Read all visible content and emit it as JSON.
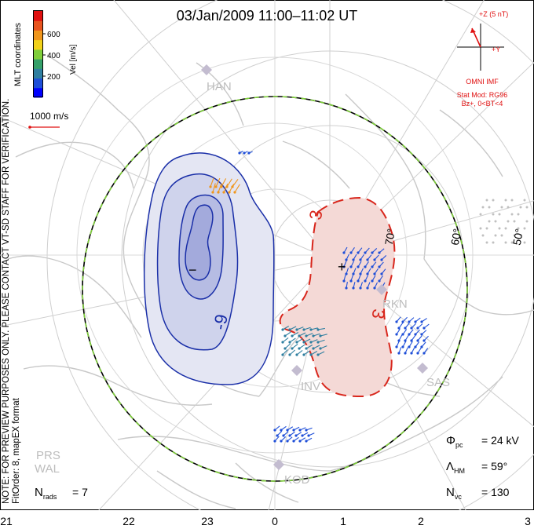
{
  "title": "03/Jan/2009 11:00–11:02 UT",
  "colorbar": {
    "label": "Vel [m/s]",
    "ticks": [
      "600",
      "400",
      "200"
    ],
    "colors": [
      "#0000ff",
      "#1f4fd8",
      "#2f7fa0",
      "#35a06a",
      "#7fcf3a",
      "#f2d21a",
      "#f0961c",
      "#e8541f",
      "#e01010"
    ],
    "coord_label": "MLT coordinates"
  },
  "scale_vector": {
    "label": "1000 m/s",
    "color": "#e01010"
  },
  "imf": {
    "z_label": "+Z (5 nT)",
    "y_label": "+Y",
    "source": "OMNI IMF",
    "model": "Stat Mod: RG96",
    "condition": "Bz+, 0<BT<4",
    "color": "#e01010"
  },
  "note": "NOTE: FOR PREVIEW PURPOSES ONLY. PLEASE CONTACT VT-SD STAFF FOR VERIFICATION.",
  "fit_order": "FitOrder: 8, mapEX format",
  "stations": [
    "HAN",
    "RKN",
    "INV",
    "SAS",
    "KOD",
    "PRS",
    "WAL"
  ],
  "latitudes": [
    "70°",
    "60°",
    "50°"
  ],
  "contours": {
    "neg_label": "-9",
    "pos_label": "3",
    "min_marker": "−",
    "max_marker": "+"
  },
  "stats": {
    "phi_pc": "= 24 kV",
    "lambda_hm": "= 59°",
    "n_vc": "= 130",
    "n_rads": "= 7"
  },
  "mlt_ticks": [
    "21",
    "22",
    "23",
    "0",
    "1",
    "2",
    "3"
  ],
  "colors": {
    "negative_cell": "#1a2fa8",
    "positive_cell": "#d8261c",
    "boundary_green": "#7fd03a"
  }
}
